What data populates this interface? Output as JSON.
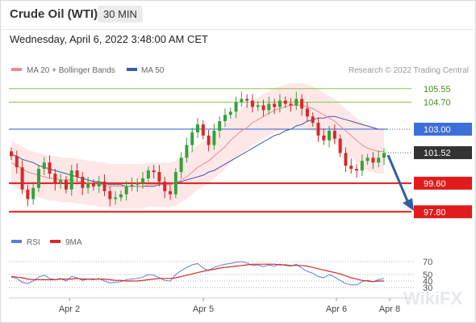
{
  "header": {
    "instrument": "Crude Oil (WTI)",
    "timeframe": "30 MIN",
    "datetime": "Wednesday, April 6, 2022 3:48:00 AM CET"
  },
  "legend": {
    "ma20": "MA 20 + Bollinger Bands",
    "ma50": "MA 50",
    "credit": "Research © 2022 Trading Central",
    "rsi": "RSI",
    "ma9": "9MA"
  },
  "watermark": "WikiFX",
  "colors": {
    "ma20": "#f08a8a",
    "ma50": "#3a5ba6",
    "bands_fill": "#fde4e4",
    "up_candle": "#35a13a",
    "down_candle": "#d42a2a",
    "resistance": "#8ac34a",
    "pivot": "#3d6fd8",
    "support": "#e11b1b",
    "current": "#333333",
    "arrow": "#2f5f9e"
  },
  "chart_data": [
    {
      "type": "candlestick",
      "x_labels": [
        "Apr 2",
        "Apr 5",
        "Apr 6",
        "Apr 8"
      ],
      "price_range": [
        97.0,
        106.2
      ],
      "levels": [
        {
          "value": "105.55",
          "kind": "resistance"
        },
        {
          "value": "104.70",
          "kind": "resistance"
        },
        {
          "value": "103.00",
          "kind": "pivot"
        },
        {
          "value": "101.52",
          "kind": "current"
        },
        {
          "value": "99.60",
          "kind": "support"
        },
        {
          "value": "97.80",
          "kind": "support"
        }
      ],
      "close_path": [
        101.3,
        100.6,
        99.2,
        98.6,
        99.3,
        100.5,
        100.9,
        100.2,
        99.6,
        99.8,
        99.2,
        100.4,
        100.0,
        99.3,
        99.6,
        99.4,
        99.7,
        99.1,
        98.6,
        98.7,
        98.9,
        99.4,
        99.5,
        99.6,
        99.9,
        100.4,
        100.3,
        99.7,
        99.1,
        98.9,
        100.3,
        101.2,
        102.0,
        102.8,
        103.3,
        102.6,
        102.0,
        102.9,
        103.5,
        103.9,
        104.1,
        104.7,
        104.9,
        104.8,
        104.4,
        104.5,
        104.2,
        104.6,
        104.4,
        104.8,
        104.6,
        104.5,
        104.9,
        104.3,
        103.8,
        103.4,
        102.6,
        102.3,
        102.9,
        102.4,
        101.5,
        100.7,
        100.5,
        100.4,
        101.0,
        101.2,
        100.9,
        101.2,
        101.5
      ],
      "ma20": [
        100.9,
        100.7,
        100.5,
        100.3,
        100.2,
        100.1,
        100.0,
        99.9,
        99.9,
        99.8,
        99.8,
        99.8,
        99.7,
        99.7,
        99.6,
        99.6,
        99.5,
        99.5,
        99.4,
        99.4,
        99.4,
        99.4,
        99.4,
        99.4,
        99.4,
        99.5,
        99.5,
        99.5,
        99.5,
        99.5,
        99.6,
        99.8,
        100.0,
        100.3,
        100.6,
        100.8,
        101.0,
        101.3,
        101.6,
        101.9,
        102.3,
        102.6,
        102.9,
        103.1,
        103.4,
        103.6,
        103.8,
        104.0,
        104.2,
        104.3,
        104.4,
        104.5,
        104.5,
        104.5,
        104.4,
        104.3,
        104.1,
        103.9,
        103.7,
        103.5,
        103.2,
        102.9,
        102.6,
        102.3,
        102.0,
        101.8,
        101.7,
        101.6,
        101.6
      ],
      "ma50": [
        101.4,
        101.3,
        101.1,
        101.0,
        100.9,
        100.7,
        100.6,
        100.5,
        100.4,
        100.3,
        100.2,
        100.1,
        100.0,
        99.9,
        99.8,
        99.7,
        99.7,
        99.6,
        99.5,
        99.5,
        99.5,
        99.4,
        99.4,
        99.4,
        99.4,
        99.4,
        99.4,
        99.5,
        99.5,
        99.5,
        99.6,
        99.7,
        99.8,
        99.9,
        100.0,
        100.1,
        100.3,
        100.4,
        100.6,
        100.8,
        101.0,
        101.2,
        101.4,
        101.6,
        101.8,
        102.0,
        102.2,
        102.4,
        102.6,
        102.7,
        102.9,
        103.0,
        103.2,
        103.3,
        103.5,
        103.6,
        103.7,
        103.7,
        103.8,
        103.8,
        103.7,
        103.6,
        103.5,
        103.4,
        103.3,
        103.2,
        103.1,
        103.0,
        103.0
      ],
      "bb_width": 1.4,
      "forecast": {
        "from": 101.52,
        "to": 97.8
      }
    },
    {
      "type": "line",
      "name": "RSI",
      "y_ticks": [
        "70",
        "50",
        "40",
        "30"
      ],
      "series": [
        {
          "name": "RSI",
          "values": [
            46,
            44,
            38,
            36,
            40,
            46,
            49,
            44,
            42,
            44,
            40,
            47,
            45,
            41,
            43,
            42,
            44,
            40,
            37,
            38,
            39,
            42,
            43,
            44,
            46,
            50,
            49,
            45,
            41,
            40,
            50,
            56,
            61,
            65,
            67,
            60,
            56,
            61,
            64,
            66,
            67,
            69,
            70,
            68,
            64,
            65,
            62,
            65,
            63,
            66,
            64,
            63,
            66,
            60,
            55,
            52,
            47,
            45,
            50,
            46,
            41,
            36,
            34,
            34,
            39,
            41,
            39,
            42,
            44
          ]
        },
        {
          "name": "9MA",
          "values": [
            47,
            46,
            45,
            43,
            42,
            42,
            42,
            42,
            42,
            43,
            43,
            43,
            44,
            43,
            43,
            43,
            43,
            43,
            42,
            41,
            41,
            40,
            40,
            40,
            41,
            42,
            43,
            44,
            44,
            44,
            45,
            47,
            49,
            51,
            53,
            55,
            57,
            58,
            60,
            61,
            62,
            63,
            64,
            65,
            66,
            66,
            66,
            66,
            66,
            65,
            65,
            64,
            64,
            64,
            63,
            61,
            59,
            57,
            55,
            53,
            51,
            48,
            45,
            43,
            41,
            40,
            39,
            40,
            40
          ]
        }
      ]
    }
  ]
}
